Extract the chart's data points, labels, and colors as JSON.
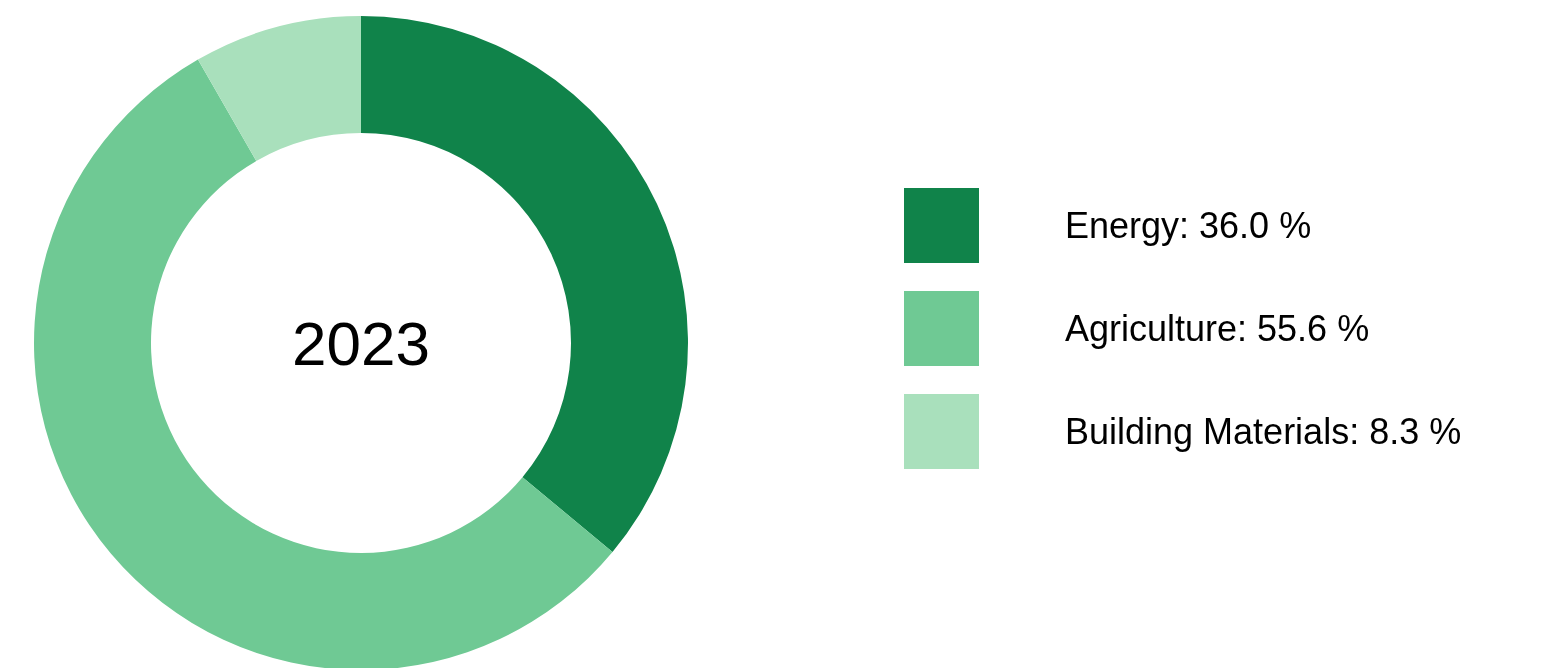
{
  "chart_data": {
    "type": "donut",
    "title": "2023",
    "categories": [
      "Energy",
      "Agriculture",
      "Building Materials"
    ],
    "values": [
      36.0,
      55.6,
      8.3
    ],
    "colors": [
      "#10834a",
      "#6fc994",
      "#a9e0bc"
    ],
    "value_labels": [
      "36.0 %",
      "55.6 %",
      "8.3 %"
    ],
    "legend": "right"
  }
}
